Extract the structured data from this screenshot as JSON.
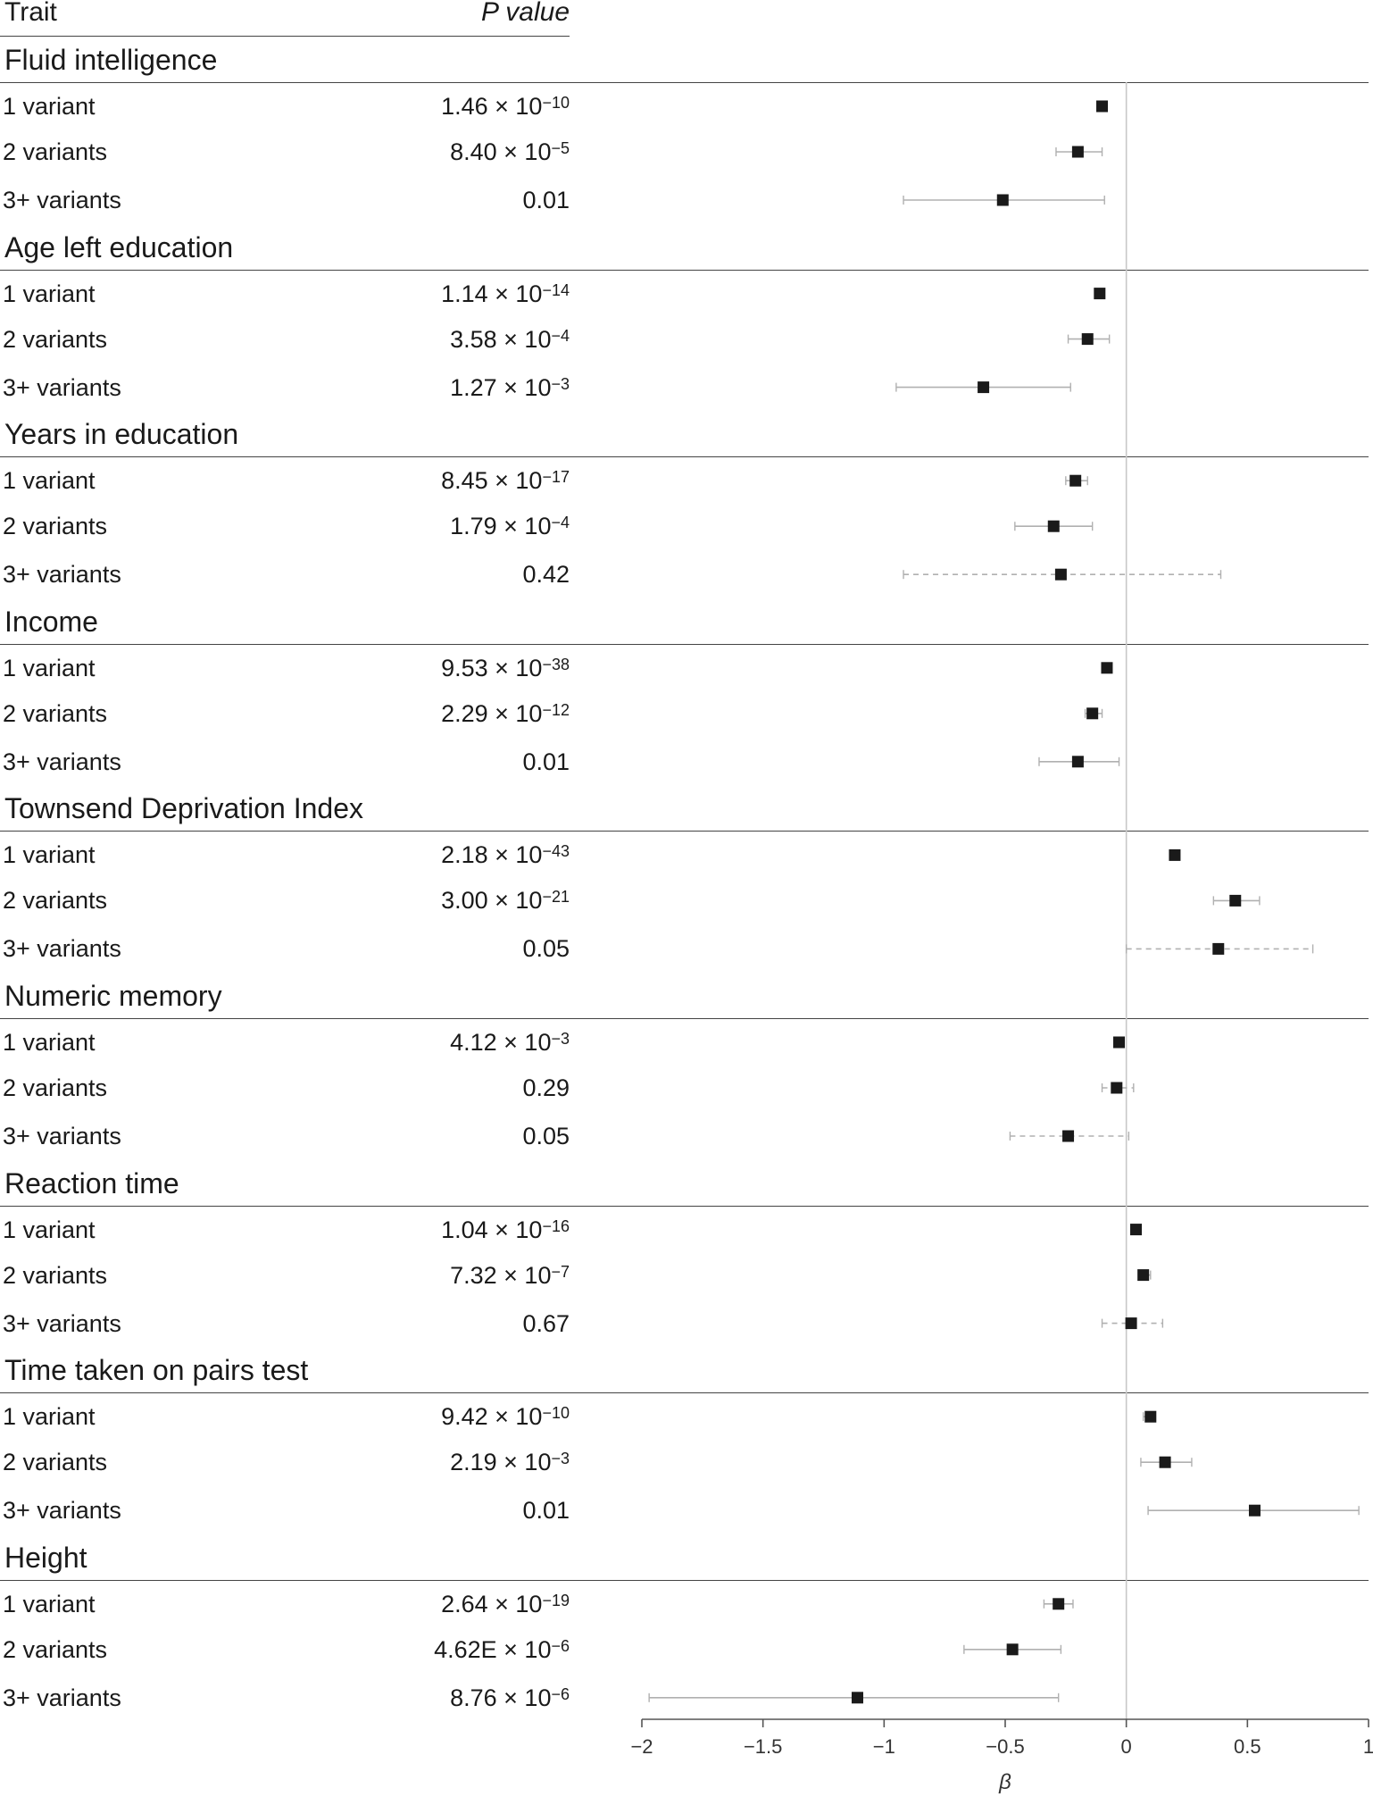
{
  "header": {
    "trait_label": "Trait",
    "pvalue_label": "P value"
  },
  "colors": {
    "marker": "#1a1a1a",
    "whisker": "#b0b0b0",
    "zero_line": "#c8c8c8",
    "axis": "#555555"
  },
  "chart_data": {
    "type": "forest",
    "xlabel": "β",
    "xlim": [
      -2,
      1
    ],
    "x_ticks": [
      -2,
      -1.5,
      -1,
      -0.5,
      0,
      0.5,
      1
    ],
    "x_tick_labels": [
      "−2",
      "−1.5",
      "−1",
      "−0.5",
      "0",
      "0.5",
      "1"
    ],
    "reference_line": 0,
    "groups": [
      {
        "trait": "Fluid intelligence",
        "rows": [
          {
            "label": "1 variant",
            "p_mantissa": "1.46 × 10",
            "p_exp": "−10",
            "beta": -0.1,
            "lo": -0.11,
            "hi": -0.09,
            "dashed": false
          },
          {
            "label": "2 variants",
            "p_mantissa": "8.40 × 10",
            "p_exp": "−5",
            "beta": -0.2,
            "lo": -0.29,
            "hi": -0.1,
            "dashed": false
          },
          {
            "label": "3+ variants",
            "p_mantissa": "0.01",
            "p_exp": "",
            "beta": -0.51,
            "lo": -0.92,
            "hi": -0.09,
            "dashed": false
          }
        ]
      },
      {
        "trait": "Age left education",
        "rows": [
          {
            "label": "1 variant",
            "p_mantissa": "1.14 × 10",
            "p_exp": "−14",
            "beta": -0.11,
            "lo": -0.12,
            "hi": -0.1,
            "dashed": false
          },
          {
            "label": "2 variants",
            "p_mantissa": "3.58 × 10",
            "p_exp": "−4",
            "beta": -0.16,
            "lo": -0.24,
            "hi": -0.07,
            "dashed": false
          },
          {
            "label": "3+ variants",
            "p_mantissa": "1.27 × 10",
            "p_exp": "−3",
            "beta": -0.59,
            "lo": -0.95,
            "hi": -0.23,
            "dashed": false
          }
        ]
      },
      {
        "trait": "Years in education",
        "rows": [
          {
            "label": "1 variant",
            "p_mantissa": "8.45 × 10",
            "p_exp": "−17",
            "beta": -0.21,
            "lo": -0.25,
            "hi": -0.16,
            "dashed": false
          },
          {
            "label": "2 variants",
            "p_mantissa": "1.79 × 10",
            "p_exp": "−4",
            "beta": -0.3,
            "lo": -0.46,
            "hi": -0.14,
            "dashed": false
          },
          {
            "label": "3+ variants",
            "p_mantissa": "0.42",
            "p_exp": "",
            "beta": -0.27,
            "lo": -0.92,
            "hi": 0.39,
            "dashed": true
          }
        ]
      },
      {
        "trait": "Income",
        "rows": [
          {
            "label": "1 variant",
            "p_mantissa": "9.53 × 10",
            "p_exp": "−38",
            "beta": -0.08,
            "lo": -0.09,
            "hi": -0.07,
            "dashed": false
          },
          {
            "label": "2 variants",
            "p_mantissa": "2.29 × 10",
            "p_exp": "−12",
            "beta": -0.14,
            "lo": -0.17,
            "hi": -0.1,
            "dashed": false
          },
          {
            "label": "3+ variants",
            "p_mantissa": "0.01",
            "p_exp": "",
            "beta": -0.2,
            "lo": -0.36,
            "hi": -0.03,
            "dashed": false
          }
        ]
      },
      {
        "trait": "Townsend Deprivation Index",
        "rows": [
          {
            "label": "1 variant",
            "p_mantissa": "2.18 × 10",
            "p_exp": "−43",
            "beta": 0.2,
            "lo": 0.18,
            "hi": 0.22,
            "dashed": false
          },
          {
            "label": "2 variants",
            "p_mantissa": "3.00 × 10",
            "p_exp": "−21",
            "beta": 0.45,
            "lo": 0.36,
            "hi": 0.55,
            "dashed": false
          },
          {
            "label": "3+ variants",
            "p_mantissa": "0.05",
            "p_exp": "",
            "beta": 0.38,
            "lo": 0.0,
            "hi": 0.77,
            "dashed": true
          }
        ]
      },
      {
        "trait": "Numeric memory",
        "rows": [
          {
            "label": "1 variant",
            "p_mantissa": "4.12 × 10",
            "p_exp": "−3",
            "beta": -0.03,
            "lo": -0.05,
            "hi": -0.01,
            "dashed": false
          },
          {
            "label": "2 variants",
            "p_mantissa": "0.29",
            "p_exp": "",
            "beta": -0.04,
            "lo": -0.1,
            "hi": 0.03,
            "dashed": true
          },
          {
            "label": "3+ variants",
            "p_mantissa": "0.05",
            "p_exp": "",
            "beta": -0.24,
            "lo": -0.48,
            "hi": 0.01,
            "dashed": true
          }
        ]
      },
      {
        "trait": "Reaction time",
        "rows": [
          {
            "label": "1 variant",
            "p_mantissa": "1.04 × 10",
            "p_exp": "−16",
            "beta": 0.04,
            "lo": 0.03,
            "hi": 0.05,
            "dashed": false
          },
          {
            "label": "2 variants",
            "p_mantissa": "7.32 × 10",
            "p_exp": "−7",
            "beta": 0.07,
            "lo": 0.05,
            "hi": 0.1,
            "dashed": false
          },
          {
            "label": "3+ variants",
            "p_mantissa": "0.67",
            "p_exp": "",
            "beta": 0.02,
            "lo": -0.1,
            "hi": 0.15,
            "dashed": true
          }
        ]
      },
      {
        "trait": "Time taken on pairs test",
        "rows": [
          {
            "label": "1 variant",
            "p_mantissa": "9.42 × 10",
            "p_exp": "−10",
            "beta": 0.1,
            "lo": 0.07,
            "hi": 0.12,
            "dashed": false
          },
          {
            "label": "2 variants",
            "p_mantissa": "2.19 × 10",
            "p_exp": "−3",
            "beta": 0.16,
            "lo": 0.06,
            "hi": 0.27,
            "dashed": false
          },
          {
            "label": "3+ variants",
            "p_mantissa": "0.01",
            "p_exp": "",
            "beta": 0.53,
            "lo": 0.09,
            "hi": 0.96,
            "dashed": false
          }
        ]
      },
      {
        "trait": "Height",
        "rows": [
          {
            "label": "1 variant",
            "p_mantissa": "2.64 × 10",
            "p_exp": "−19",
            "beta": -0.28,
            "lo": -0.34,
            "hi": -0.22,
            "dashed": false
          },
          {
            "label": "2 variants",
            "p_mantissa": "4.62E × 10",
            "p_exp": "−6",
            "beta": -0.47,
            "lo": -0.67,
            "hi": -0.27,
            "dashed": false
          },
          {
            "label": "3+ variants",
            "p_mantissa": "8.76 × 10",
            "p_exp": "−6",
            "beta": -1.11,
            "lo": -1.97,
            "hi": -0.28,
            "dashed": false
          }
        ]
      }
    ]
  }
}
